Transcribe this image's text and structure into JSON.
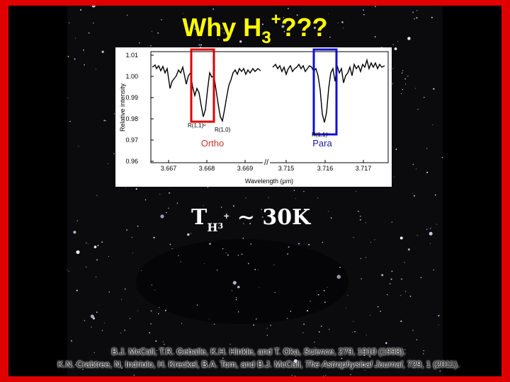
{
  "title": {
    "text": "Why H",
    "subscript": "3",
    "superscript": "+",
    "suffix": "???"
  },
  "spectrum": {
    "y_axis_label": "Relative intensity",
    "x_axis_label": "Wavelength (μm)",
    "yticks": [
      "1.01",
      "1.00",
      "0.99",
      "0.98",
      "0.97",
      "0.96"
    ],
    "xticks": [
      "3.667",
      "3.668",
      "3.669",
      "3.715",
      "3.716",
      "3.717"
    ],
    "line_labels": [
      "R(1,1)ᵘ",
      "R(1,0)",
      "R(1,1)ˡ"
    ],
    "box_labels": [
      "Ortho",
      "Para"
    ]
  },
  "equation": {
    "symbol": "T",
    "subscript": "H",
    "sub_subscript": "3",
    "sub_superscript": "+",
    "rest": "∼ 30K"
  },
  "references": [
    {
      "authors": "B.J. McCall, T.R. Geballe, K.H. Hinkle, and T. Oka, ",
      "journal": "Science",
      "details": ", 279, 1910 (1998)."
    },
    {
      "authors": "K.N. Crabtree, N. Indriolo, H. Kreckel, B.A. Tom, and B.J. McCall, ",
      "journal": "The Astrophysical Journal",
      "details": ", 729, 1 (2011)."
    }
  ]
}
